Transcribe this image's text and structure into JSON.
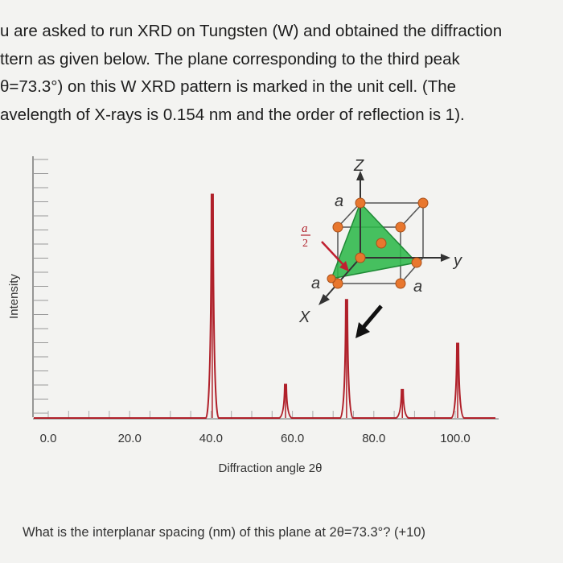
{
  "problem": {
    "lines": [
      "u are asked to run XRD on Tungsten (W) and obtained the diffraction",
      "ttern as given below. The plane corresponding to the third peak",
      "θ=73.3°) on this W XRD pattern is marked in the unit cell. (The",
      "avelength of X-rays is 0.154 nm and the order of reflection is 1)."
    ]
  },
  "question": "What is the interplanar spacing (nm) of this plane at 2θ=73.3°? (+10)",
  "unit_cell": {
    "axis_z": "Z",
    "axis_y": "y",
    "axis_x": "X",
    "edge_labels": [
      "a",
      "a",
      "a"
    ],
    "fraction_num": "a",
    "fraction_den": "2",
    "plane_color": "#2db84a",
    "atom_color": "#e8772e"
  },
  "chart_data": {
    "type": "line",
    "xlabel": "Diffraction angle 2θ",
    "ylabel": "Intensity",
    "xlim": [
      0,
      100
    ],
    "x_ticks": [
      "0.0",
      "20.0",
      "40.0",
      "60.0",
      "80.0",
      "100.0"
    ],
    "peaks": [
      {
        "x": 40.3,
        "height": 0.87
      },
      {
        "x": 58.3,
        "height": 0.13
      },
      {
        "x": 73.3,
        "height": 0.46
      },
      {
        "x": 87.0,
        "height": 0.11
      },
      {
        "x": 100.6,
        "height": 0.29
      }
    ],
    "line_color": "#b0202a"
  }
}
